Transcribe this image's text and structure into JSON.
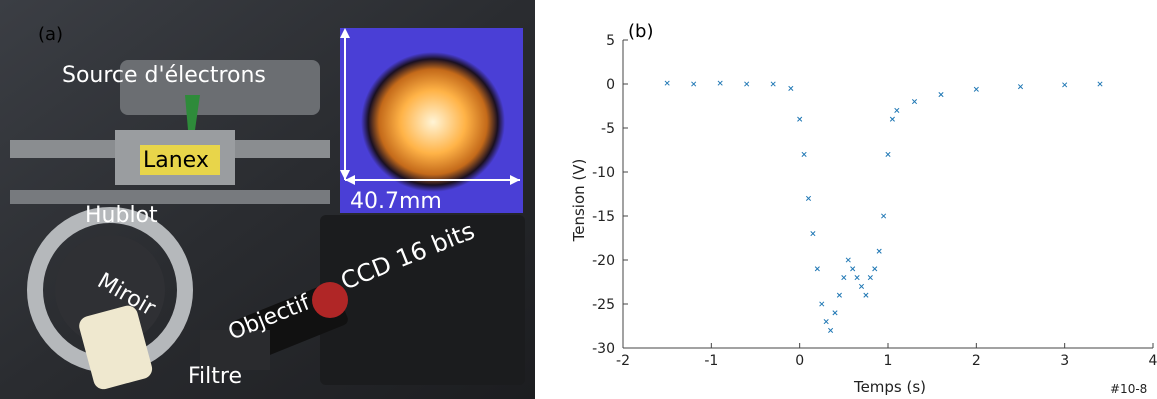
{
  "photo": {
    "panel_label": "(a)",
    "labels": {
      "source": "Source d'électrons",
      "lanex": "Lanex",
      "hublot": "Hublot",
      "miroir": "Miroir",
      "objectif": "Objectif",
      "ccd": "CCD 16 bits",
      "filtre": "Filtre",
      "scale": "40.7mm"
    },
    "colors": {
      "lanex_screen": "#e8d54a",
      "beam_core": "#ffb347",
      "beam_background": "#4a3fd6",
      "arrow": "#2e8b3a"
    }
  },
  "chart_data": {
    "type": "scatter",
    "panel_label": "(b)",
    "xlabel": "Temps (s)",
    "ylabel": "Tension (V)",
    "x_multiplier": "#10-8",
    "xlim": [
      -2e-08,
      4e-08
    ],
    "ylim": [
      -30,
      5
    ],
    "xticks": [
      -2e-08,
      -1e-08,
      0,
      1e-08,
      2e-08,
      3e-08,
      4e-08
    ],
    "xtick_labels": [
      "-2",
      "-1",
      "0",
      "1",
      "2",
      "3",
      "4"
    ],
    "yticks": [
      5,
      0,
      -5,
      -10,
      -15,
      -20,
      -25,
      -30
    ],
    "ytick_labels": [
      "5",
      "0",
      "-5",
      "-10",
      "-15",
      "-20",
      "-25",
      "-30"
    ],
    "marker": "x",
    "color": "#1f77b4",
    "series": [
      {
        "x": [
          -1.5e-08,
          -1.2e-08,
          -9e-09,
          -6e-09,
          -3e-09,
          -1e-09,
          0,
          5e-10,
          1e-09,
          1.5e-09,
          2e-09,
          2.5e-09,
          3e-09,
          3.5e-09,
          4e-09,
          4.5e-09,
          5e-09,
          5.5e-09,
          6e-09,
          6.5e-09,
          7e-09,
          7.5e-09,
          8e-09,
          8.5e-09,
          9e-09,
          9.5e-09,
          1e-08,
          1.05e-08,
          1.1e-08,
          1.3e-08,
          1.6e-08,
          2e-08,
          2.5e-08,
          3e-08,
          3.4e-08
        ],
        "y": [
          0.1,
          0.0,
          0.1,
          0.0,
          0.0,
          -0.5,
          -4,
          -8,
          -13,
          -17,
          -21,
          -25,
          -27,
          -28,
          -26,
          -24,
          -22,
          -20,
          -21,
          -22,
          -23,
          -24,
          -22,
          -21,
          -19,
          -15,
          -8,
          -4,
          -3,
          -2,
          -1.2,
          -0.6,
          -0.3,
          -0.1,
          0.0
        ]
      }
    ]
  }
}
